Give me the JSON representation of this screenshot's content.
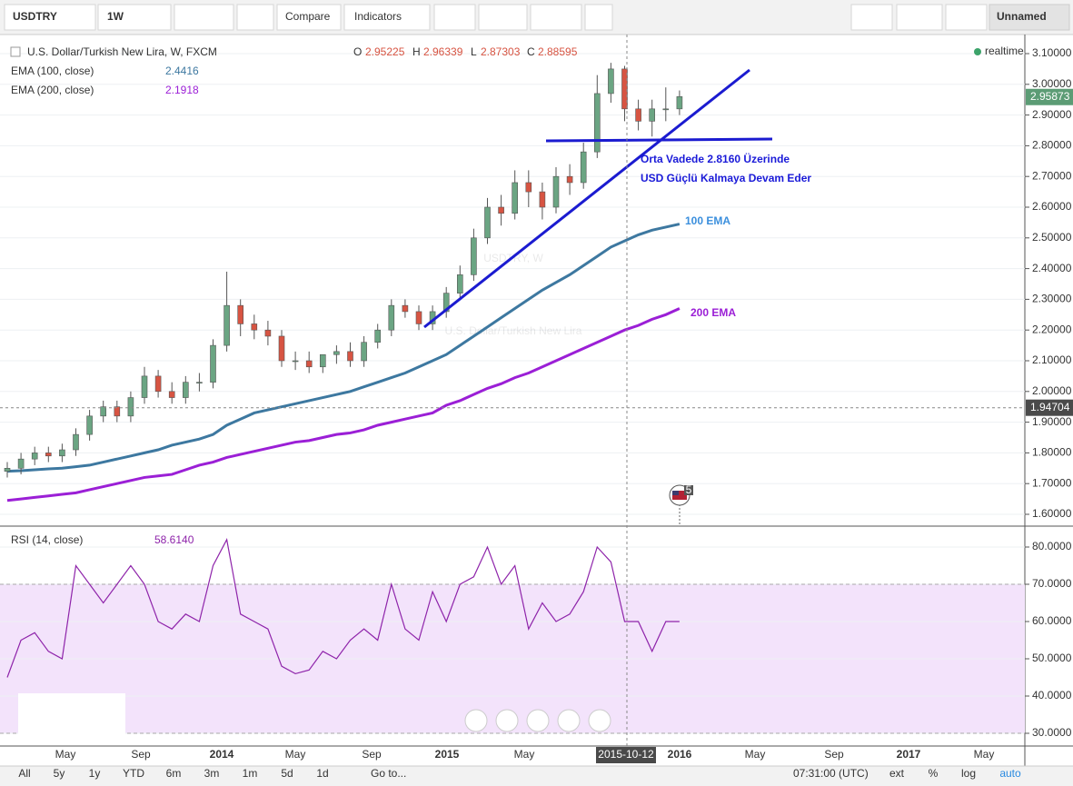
{
  "toolbar": {
    "symbol": "USDTRY",
    "interval": "1W",
    "compare": "Compare",
    "indicators": "Indicators",
    "layout": "Unnamed"
  },
  "bottom_bar": {
    "ranges": [
      "All",
      "5y",
      "1y",
      "YTD",
      "6m",
      "3m",
      "1m",
      "5d",
      "1d"
    ],
    "goto": "Go to...",
    "time": "07:31:00 (UTC)",
    "options": [
      "ext",
      "%",
      "log",
      "auto"
    ]
  },
  "time_axis": {
    "labels": [
      "May",
      "Sep",
      "2014",
      "May",
      "Sep",
      "2015",
      "May",
      "2016",
      "May",
      "Sep",
      "2017",
      "May"
    ],
    "crosshair": "2015-10-12"
  },
  "chart_data": [
    {
      "type": "candlestick",
      "title": "U.S. Dollar/Turkish New Lira, W, FXCM",
      "ohlc_labels": [
        "O",
        "H",
        "L",
        "C"
      ],
      "ohlc_values": [
        "2.95225",
        "2.96339",
        "2.87303",
        "2.88595"
      ],
      "realtime": "realtime",
      "watermark": [
        "USDTRY, W",
        "U.S. Dollar/Turkish New Lira"
      ],
      "annotations": [
        "Orta Vadede 2.8160 Üzerinde",
        "USD Güçlü Kalmaya Devam Eder",
        "100 EMA",
        "200 EMA"
      ],
      "up_color": "#6ba583",
      "down_color": "#d75442",
      "open": [
        1.74,
        1.75,
        1.78,
        1.8,
        1.79,
        1.81,
        1.86,
        1.92,
        1.95,
        1.92,
        1.98,
        2.05,
        2.0,
        1.98,
        2.03,
        2.03,
        2.15,
        2.28,
        2.22,
        2.2,
        2.18,
        2.1,
        2.1,
        2.08,
        2.12,
        2.13,
        2.1,
        2.16,
        2.2,
        2.28,
        2.26,
        2.22,
        2.26,
        2.32,
        2.38,
        2.5,
        2.6,
        2.58,
        2.68,
        2.65,
        2.6,
        2.7,
        2.68,
        2.78,
        2.97,
        3.05,
        2.92,
        2.88,
        2.92,
        2.92
      ],
      "high": [
        1.77,
        1.8,
        1.82,
        1.82,
        1.83,
        1.88,
        1.94,
        1.97,
        1.97,
        2.0,
        2.08,
        2.07,
        2.03,
        2.05,
        2.06,
        2.17,
        2.39,
        2.3,
        2.25,
        2.23,
        2.2,
        2.13,
        2.13,
        2.12,
        2.15,
        2.16,
        2.18,
        2.22,
        2.3,
        2.3,
        2.28,
        2.28,
        2.34,
        2.41,
        2.53,
        2.63,
        2.64,
        2.72,
        2.72,
        2.68,
        2.73,
        2.74,
        2.81,
        3.03,
        3.07,
        3.06,
        2.95,
        2.95,
        2.99,
        2.98
      ],
      "low": [
        1.72,
        1.73,
        1.76,
        1.77,
        1.77,
        1.79,
        1.84,
        1.9,
        1.9,
        1.9,
        1.96,
        1.98,
        1.96,
        1.96,
        2.0,
        2.01,
        2.13,
        2.18,
        2.17,
        2.15,
        2.08,
        2.07,
        2.06,
        2.06,
        2.09,
        2.08,
        2.08,
        2.14,
        2.18,
        2.24,
        2.2,
        2.2,
        2.24,
        2.3,
        2.36,
        2.48,
        2.54,
        2.56,
        2.6,
        2.56,
        2.58,
        2.64,
        2.66,
        2.76,
        2.94,
        2.88,
        2.85,
        2.83,
        2.88,
        2.9
      ],
      "close": [
        1.75,
        1.78,
        1.8,
        1.79,
        1.81,
        1.86,
        1.92,
        1.95,
        1.92,
        1.98,
        2.05,
        2.0,
        1.98,
        2.03,
        2.03,
        2.15,
        2.28,
        2.22,
        2.2,
        2.18,
        2.1,
        2.1,
        2.08,
        2.12,
        2.13,
        2.1,
        2.16,
        2.2,
        2.28,
        2.26,
        2.22,
        2.26,
        2.32,
        2.38,
        2.5,
        2.6,
        2.58,
        2.68,
        2.65,
        2.6,
        2.7,
        2.68,
        2.78,
        2.97,
        3.05,
        2.92,
        2.88,
        2.92,
        2.92,
        2.96
      ],
      "series": [
        {
          "name": "EMA (100, close)",
          "legend_value": "2.4416",
          "color": "#3d78a0",
          "values": [
            1.74,
            1.742,
            1.745,
            1.748,
            1.75,
            1.755,
            1.76,
            1.77,
            1.78,
            1.79,
            1.8,
            1.81,
            1.825,
            1.835,
            1.845,
            1.86,
            1.89,
            1.91,
            1.93,
            1.94,
            1.95,
            1.96,
            1.97,
            1.98,
            1.99,
            2.0,
            2.015,
            2.03,
            2.045,
            2.06,
            2.08,
            2.1,
            2.12,
            2.15,
            2.18,
            2.21,
            2.24,
            2.27,
            2.3,
            2.33,
            2.355,
            2.38,
            2.41,
            2.44,
            2.47,
            2.49,
            2.51,
            2.525,
            2.535,
            2.545
          ]
        },
        {
          "name": "EMA (200, close)",
          "legend_value": "2.1918",
          "color": "#9b1fd6",
          "values": [
            1.645,
            1.65,
            1.655,
            1.66,
            1.665,
            1.67,
            1.68,
            1.69,
            1.7,
            1.71,
            1.72,
            1.725,
            1.73,
            1.745,
            1.76,
            1.77,
            1.785,
            1.795,
            1.805,
            1.815,
            1.825,
            1.835,
            1.84,
            1.85,
            1.86,
            1.865,
            1.875,
            1.89,
            1.9,
            1.91,
            1.92,
            1.93,
            1.955,
            1.97,
            1.99,
            2.01,
            2.025,
            2.045,
            2.06,
            2.08,
            2.1,
            2.12,
            2.14,
            2.16,
            2.18,
            2.2,
            2.215,
            2.235,
            2.25,
            2.27
          ]
        }
      ],
      "last_price": 2.95873,
      "crosshair_price": 1.94704,
      "event_marker": 5,
      "ylim": [
        1.5645,
        3.1562
      ],
      "yticks": [
        {
          "value": 3.1,
          "label": "3.10000"
        },
        {
          "value": 3.0,
          "label": "3.00000"
        },
        {
          "value": 2.9,
          "label": "2.90000"
        },
        {
          "value": 2.8,
          "label": "2.80000"
        },
        {
          "value": 2.7,
          "label": "2.70000"
        },
        {
          "value": 2.6,
          "label": "2.60000"
        },
        {
          "value": 2.5,
          "label": "2.50000"
        },
        {
          "value": 2.4,
          "label": "2.40000"
        },
        {
          "value": 2.3,
          "label": "2.30000"
        },
        {
          "value": 2.2,
          "label": "2.20000"
        },
        {
          "value": 2.1,
          "label": "2.10000"
        },
        {
          "value": 2.0,
          "label": "2.00000"
        },
        {
          "value": 1.9,
          "label": "1.90000"
        },
        {
          "value": 1.8,
          "label": "1.80000"
        },
        {
          "value": 1.7,
          "label": "1.70000"
        },
        {
          "value": 1.6,
          "label": "1.60000"
        }
      ],
      "grid": true
    },
    {
      "type": "line",
      "title": "RSI (14, close)",
      "legend_value": "58.6140",
      "color": "#8e24aa",
      "values": [
        45,
        55,
        57,
        52,
        50,
        75,
        70,
        65,
        70,
        75,
        70,
        60,
        58,
        62,
        60,
        75,
        82,
        62,
        60,
        58,
        48,
        46,
        47,
        52,
        50,
        55,
        58,
        55,
        70,
        58,
        55,
        68,
        60,
        70,
        72,
        80,
        70,
        75,
        58,
        65,
        60,
        62,
        68,
        80,
        76,
        60,
        60,
        52,
        60,
        60
      ],
      "band": [
        30,
        70
      ],
      "band_color": "#f3e3fb",
      "ylim": [
        26.83,
        84.88
      ],
      "yticks": [
        {
          "value": 80,
          "label": "80.0000"
        },
        {
          "value": 70,
          "label": "70.0000"
        },
        {
          "value": 60,
          "label": "60.0000"
        },
        {
          "value": 50,
          "label": "50.0000"
        },
        {
          "value": 40,
          "label": "40.0000"
        },
        {
          "value": 30,
          "label": "30.0000"
        }
      ],
      "grid": true
    }
  ]
}
